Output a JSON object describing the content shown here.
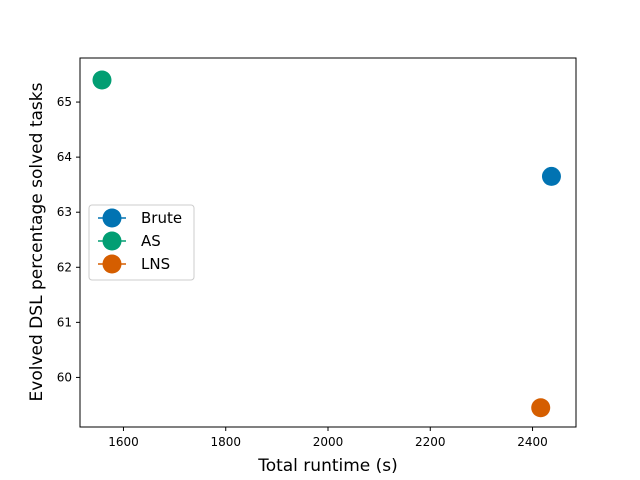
{
  "chart_data": {
    "type": "scatter",
    "title": "",
    "xlabel": "Total runtime (s)",
    "ylabel": "Evolved DSL percentage solved tasks",
    "xlim": [
      1515,
      2485
    ],
    "ylim": [
      59.1,
      65.8
    ],
    "xticks": [
      1600,
      1800,
      2000,
      2200,
      2400
    ],
    "yticks": [
      60,
      61,
      62,
      63,
      64,
      65
    ],
    "grid": false,
    "legend_position": "center-left",
    "series": [
      {
        "name": "Brute",
        "color": "#0173b2",
        "x": [
          2437
        ],
        "y": [
          63.65
        ]
      },
      {
        "name": "AS",
        "color": "#029e73",
        "x": [
          1558
        ],
        "y": [
          65.4
        ]
      },
      {
        "name": "LNS",
        "color": "#d55e00",
        "x": [
          2416
        ],
        "y": [
          59.45
        ]
      }
    ]
  }
}
